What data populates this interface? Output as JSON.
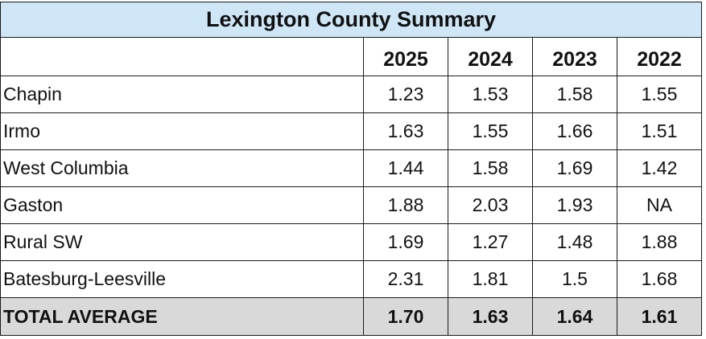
{
  "title": "Lexington County Summary",
  "columns": [
    "2025",
    "2024",
    "2023",
    "2022"
  ],
  "rows": [
    {
      "name": "Chapin",
      "values": [
        "1.23",
        "1.53",
        "1.58",
        "1.55"
      ]
    },
    {
      "name": "Irmo",
      "values": [
        "1.63",
        "1.55",
        "1.66",
        "1.51"
      ]
    },
    {
      "name": "West Columbia",
      "values": [
        "1.44",
        "1.58",
        "1.69",
        "1.42"
      ]
    },
    {
      "name": "Gaston",
      "values": [
        "1.88",
        "2.03",
        "1.93",
        "NA"
      ]
    },
    {
      "name": "Rural SW",
      "values": [
        "1.69",
        "1.27",
        "1.48",
        "1.88"
      ]
    },
    {
      "name": "Batesburg-Leesville",
      "values": [
        "2.31",
        "1.81",
        "1.5",
        "1.68"
      ]
    }
  ],
  "total": {
    "name": "TOTAL AVERAGE",
    "values": [
      "1.70",
      "1.63",
      "1.64",
      "1.61"
    ]
  },
  "colors": {
    "title_background": "#cfe6f6",
    "total_background": "#d9d9d9"
  }
}
